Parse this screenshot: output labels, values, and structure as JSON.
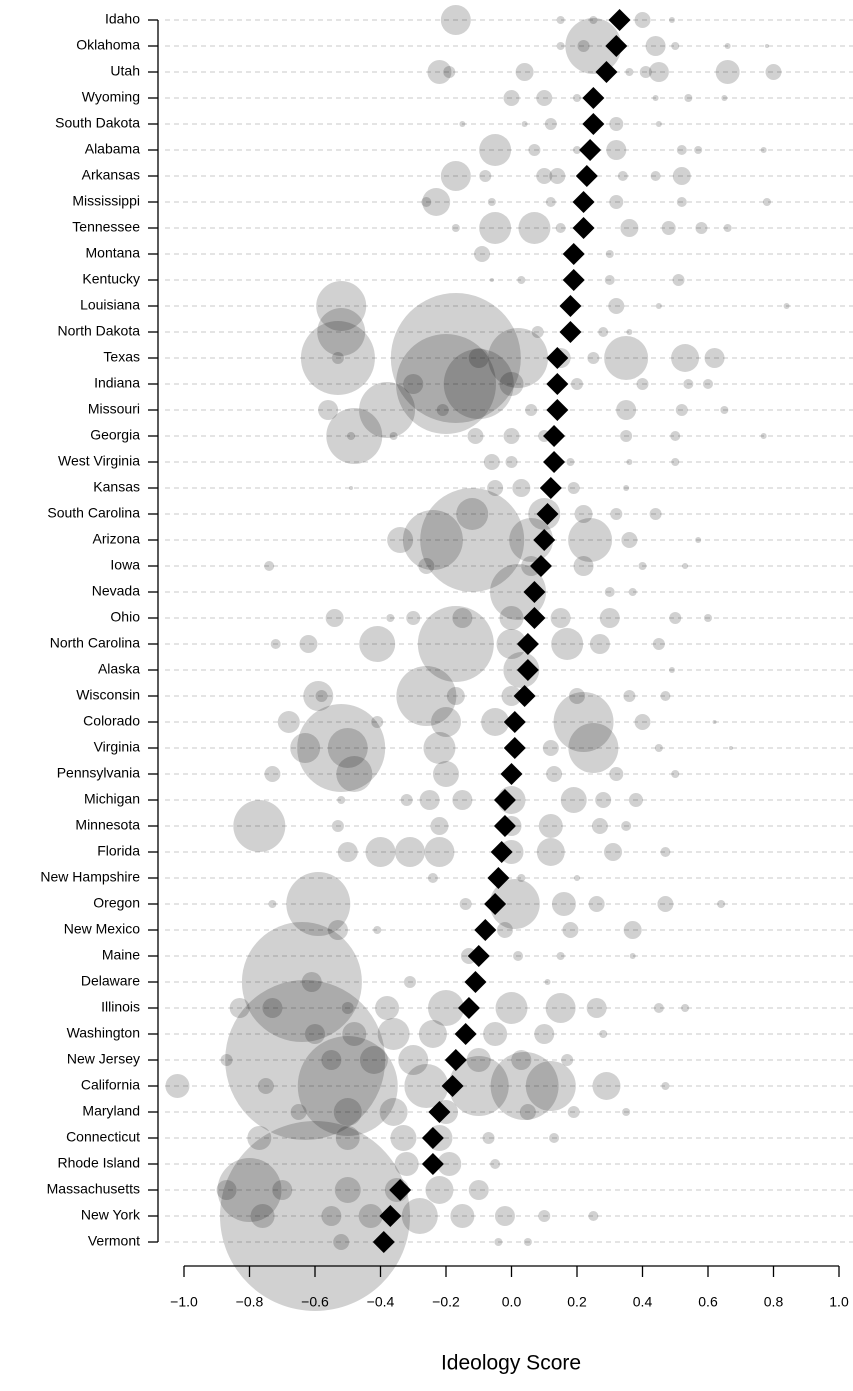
{
  "chart_data": {
    "type": "dotplot",
    "xlabel": "Ideology Score",
    "xlim": [
      -1.0,
      1.0
    ],
    "xticks": [
      {
        "value": -1.0,
        "label": "−1.0"
      },
      {
        "value": -0.8,
        "label": "−0.8"
      },
      {
        "value": -0.6,
        "label": "−0.6"
      },
      {
        "value": -0.4,
        "label": "−0.4"
      },
      {
        "value": -0.2,
        "label": "−0.2"
      },
      {
        "value": 0,
        "label": "0.0"
      },
      0.2,
      0.4,
      0.6,
      0.8,
      {
        "value": 1.0,
        "label": "1.0"
      }
    ],
    "grid": true,
    "mean_color": "#000000",
    "point_color": "#000000",
    "categories": [
      "Idaho",
      "Oklahoma",
      "Utah",
      "Wyoming",
      "South Dakota",
      "Alabama",
      "Arkansas",
      "Mississippi",
      "Tennessee",
      "Montana",
      "Kentucky",
      "Louisiana",
      "North Dakota",
      "Texas",
      "Indiana",
      "Missouri",
      "Georgia",
      "West Virginia",
      "Kansas",
      "South Carolina",
      "Arizona",
      "Iowa",
      "Nevada",
      "Ohio",
      "North Carolina",
      "Alaska",
      "Wisconsin",
      "Colorado",
      "Virginia",
      "Pennsylvania",
      "Michigan",
      "Minnesota",
      "Florida",
      "New Hampshire",
      "Oregon",
      "New Mexico",
      "Maine",
      "Delaware",
      "Illinois",
      "Washington",
      "New Jersey",
      "California",
      "Maryland",
      "Connecticut",
      "Rhode Island",
      "Massachusetts",
      "New York",
      "Vermont"
    ],
    "means": [
      0.33,
      0.32,
      0.29,
      0.25,
      0.25,
      0.24,
      0.23,
      0.22,
      0.22,
      0.19,
      0.19,
      0.18,
      0.18,
      0.14,
      0.14,
      0.14,
      0.13,
      0.13,
      0.12,
      0.11,
      0.1,
      0.09,
      0.07,
      0.07,
      0.05,
      0.05,
      0.04,
      0.01,
      0.01,
      0.0,
      -0.02,
      -0.02,
      -0.03,
      -0.04,
      -0.05,
      -0.08,
      -0.1,
      -0.11,
      -0.13,
      -0.14,
      -0.17,
      -0.18,
      -0.22,
      -0.24,
      -0.24,
      -0.34,
      -0.37,
      -0.39
    ],
    "points": [
      [
        [
          -0.17,
          15
        ],
        [
          0.15,
          4
        ],
        [
          0.25,
          4
        ],
        [
          0.4,
          8
        ],
        [
          0.49,
          3
        ]
      ],
      [
        [
          0.22,
          6
        ],
        [
          0.15,
          4
        ],
        [
          0.25,
          28
        ],
        [
          0.44,
          10
        ],
        [
          0.5,
          4
        ],
        [
          0.66,
          3
        ],
        [
          0.78,
          2
        ]
      ],
      [
        [
          -0.22,
          12
        ],
        [
          -0.19,
          6
        ],
        [
          0.04,
          9
        ],
        [
          0.41,
          6
        ],
        [
          0.45,
          10
        ],
        [
          0.66,
          12
        ],
        [
          0.8,
          8
        ],
        [
          0.36,
          4
        ]
      ],
      [
        [
          0,
          8
        ],
        [
          0.1,
          8
        ],
        [
          0.2,
          4
        ],
        [
          0.44,
          3
        ],
        [
          0.54,
          4
        ],
        [
          0.65,
          3
        ]
      ],
      [
        [
          -0.15,
          3
        ],
        [
          0.12,
          6
        ],
        [
          0.32,
          7
        ],
        [
          0.45,
          3
        ],
        [
          0.04,
          3
        ]
      ],
      [
        [
          -0.05,
          16
        ],
        [
          0.07,
          6
        ],
        [
          0.2,
          4
        ],
        [
          0.32,
          10
        ],
        [
          0.52,
          5
        ],
        [
          0.57,
          4
        ],
        [
          0.77,
          3
        ]
      ],
      [
        [
          -0.17,
          15
        ],
        [
          -0.08,
          6
        ],
        [
          0.1,
          8
        ],
        [
          0.14,
          8
        ],
        [
          0.34,
          5
        ],
        [
          0.44,
          5
        ],
        [
          0.52,
          9
        ]
      ],
      [
        [
          -0.23,
          14
        ],
        [
          -0.26,
          5
        ],
        [
          -0.06,
          4
        ],
        [
          0.12,
          5
        ],
        [
          0.32,
          7
        ],
        [
          0.52,
          5
        ],
        [
          0.78,
          4
        ]
      ],
      [
        [
          -0.17,
          4
        ],
        [
          -0.05,
          16
        ],
        [
          0.07,
          16
        ],
        [
          0.15,
          5
        ],
        [
          0.36,
          9
        ],
        [
          0.48,
          7
        ],
        [
          0.58,
          6
        ],
        [
          0.66,
          4
        ]
      ],
      [
        [
          -0.09,
          8
        ],
        [
          0.3,
          4
        ]
      ],
      [
        [
          -0.06,
          2
        ],
        [
          0.03,
          4
        ],
        [
          0.2,
          5
        ],
        [
          0.3,
          5
        ],
        [
          0.51,
          6
        ]
      ],
      [
        [
          -0.52,
          25
        ],
        [
          0.32,
          8
        ],
        [
          0.45,
          3
        ],
        [
          0.84,
          3
        ]
      ],
      [
        [
          -0.52,
          24
        ],
        [
          0.08,
          6
        ],
        [
          0.28,
          5
        ],
        [
          0.36,
          3
        ]
      ],
      [
        [
          -0.53,
          37
        ],
        [
          -0.53,
          6
        ],
        [
          -0.17,
          65
        ],
        [
          0.02,
          30
        ],
        [
          -0.1,
          10
        ],
        [
          0.15,
          10
        ],
        [
          0.35,
          22
        ],
        [
          0.53,
          14
        ],
        [
          0.62,
          10
        ],
        [
          0.25,
          6
        ]
      ],
      [
        [
          -0.3,
          10
        ],
        [
          -0.2,
          50
        ],
        [
          -0.1,
          35
        ],
        [
          0,
          12
        ],
        [
          0.2,
          6
        ],
        [
          0.4,
          6
        ],
        [
          0.54,
          5
        ],
        [
          0.6,
          5
        ]
      ],
      [
        [
          -0.38,
          28
        ],
        [
          -0.56,
          10
        ],
        [
          -0.21,
          6
        ],
        [
          0.06,
          6
        ],
        [
          0.35,
          10
        ],
        [
          0.52,
          6
        ],
        [
          0.65,
          4
        ]
      ],
      [
        [
          -0.48,
          28
        ],
        [
          -0.49,
          4
        ],
        [
          -0.36,
          4
        ],
        [
          -0.11,
          8
        ],
        [
          0.0,
          8
        ],
        [
          0.1,
          6
        ],
        [
          0.35,
          6
        ],
        [
          0.5,
          5
        ],
        [
          0.77,
          3
        ]
      ],
      [
        [
          -0.06,
          8
        ],
        [
          0,
          6
        ],
        [
          0.18,
          4
        ],
        [
          0.36,
          3
        ],
        [
          0.5,
          4
        ]
      ],
      [
        [
          -0.05,
          8
        ],
        [
          0.03,
          9
        ],
        [
          0.19,
          6
        ],
        [
          0.35,
          3
        ],
        [
          -0.49,
          2
        ]
      ],
      [
        [
          -0.12,
          16
        ],
        [
          0.1,
          16
        ],
        [
          0.22,
          9
        ],
        [
          0.32,
          6
        ],
        [
          0.44,
          6
        ]
      ],
      [
        [
          -0.34,
          13
        ],
        [
          -0.24,
          30
        ],
        [
          -0.12,
          52
        ],
        [
          0.06,
          22
        ],
        [
          0.24,
          22
        ],
        [
          0.36,
          8
        ],
        [
          0.57,
          3
        ]
      ],
      [
        [
          -0.74,
          5
        ],
        [
          -0.26,
          8
        ],
        [
          0.06,
          10
        ],
        [
          0.22,
          10
        ],
        [
          0.4,
          4
        ],
        [
          0.53,
          3
        ]
      ],
      [
        [
          0.02,
          28
        ],
        [
          0.3,
          5
        ],
        [
          0.37,
          4
        ]
      ],
      [
        [
          -0.54,
          9
        ],
        [
          -0.37,
          4
        ],
        [
          -0.3,
          7
        ],
        [
          -0.15,
          10
        ],
        [
          0,
          12
        ],
        [
          0.15,
          10
        ],
        [
          0.3,
          10
        ],
        [
          0.5,
          6
        ],
        [
          0.6,
          4
        ]
      ],
      [
        [
          -0.72,
          5
        ],
        [
          -0.62,
          9
        ],
        [
          -0.41,
          18
        ],
        [
          -0.17,
          38
        ],
        [
          0,
          15
        ],
        [
          0.17,
          16
        ],
        [
          0.27,
          10
        ],
        [
          0.45,
          6
        ]
      ],
      [
        [
          0.03,
          18
        ],
        [
          0.49,
          3
        ]
      ],
      [
        [
          -0.59,
          15
        ],
        [
          -0.58,
          6
        ],
        [
          -0.26,
          30
        ],
        [
          -0.17,
          9
        ],
        [
          0,
          10
        ],
        [
          0.2,
          8
        ],
        [
          0.36,
          6
        ],
        [
          0.47,
          5
        ]
      ],
      [
        [
          -0.68,
          11
        ],
        [
          -0.41,
          6
        ],
        [
          -0.2,
          15
        ],
        [
          -0.05,
          14
        ],
        [
          0.22,
          30
        ],
        [
          0.4,
          8
        ],
        [
          0.62,
          2
        ]
      ],
      [
        [
          -0.52,
          44
        ],
        [
          -0.63,
          15
        ],
        [
          -0.5,
          20
        ],
        [
          -0.22,
          16
        ],
        [
          0.12,
          8
        ],
        [
          0.25,
          25
        ],
        [
          0.45,
          4
        ],
        [
          0.67,
          2
        ]
      ],
      [
        [
          -0.73,
          8
        ],
        [
          -0.48,
          18
        ],
        [
          -0.2,
          13
        ],
        [
          0.13,
          8
        ],
        [
          0.32,
          7
        ],
        [
          0.5,
          4
        ]
      ],
      [
        [
          -0.32,
          6
        ],
        [
          -0.25,
          10
        ],
        [
          -0.15,
          10
        ],
        [
          0,
          14
        ],
        [
          0.19,
          13
        ],
        [
          0.28,
          8
        ],
        [
          0.38,
          7
        ],
        [
          -0.52,
          4
        ]
      ],
      [
        [
          -0.77,
          26
        ],
        [
          -0.53,
          6
        ],
        [
          -0.22,
          9
        ],
        [
          0,
          10
        ],
        [
          0.12,
          12
        ],
        [
          0.27,
          8
        ],
        [
          0.35,
          5
        ]
      ],
      [
        [
          -0.5,
          10
        ],
        [
          -0.4,
          15
        ],
        [
          -0.31,
          15
        ],
        [
          -0.22,
          15
        ],
        [
          0,
          12
        ],
        [
          0.12,
          14
        ],
        [
          0.31,
          9
        ],
        [
          0.47,
          5
        ]
      ],
      [
        [
          -0.24,
          5
        ],
        [
          0.03,
          4
        ],
        [
          0.2,
          3
        ]
      ],
      [
        [
          -0.59,
          32
        ],
        [
          -0.73,
          4
        ],
        [
          -0.14,
          6
        ],
        [
          0.01,
          25
        ],
        [
          0.16,
          12
        ],
        [
          0.26,
          8
        ],
        [
          0.47,
          8
        ],
        [
          0.64,
          4
        ]
      ],
      [
        [
          -0.53,
          10
        ],
        [
          -0.41,
          4
        ],
        [
          -0.02,
          8
        ],
        [
          0.18,
          8
        ],
        [
          0.37,
          9
        ]
      ],
      [
        [
          -0.13,
          8
        ],
        [
          0.02,
          5
        ],
        [
          0.15,
          4
        ],
        [
          0.37,
          3
        ]
      ],
      [
        [
          -0.64,
          60
        ],
        [
          -0.61,
          10
        ],
        [
          -0.31,
          6
        ],
        [
          0.11,
          3
        ]
      ],
      [
        [
          -0.83,
          10
        ],
        [
          -0.73,
          10
        ],
        [
          -0.5,
          6
        ],
        [
          -0.38,
          12
        ],
        [
          -0.2,
          18
        ],
        [
          0,
          16
        ],
        [
          0.15,
          15
        ],
        [
          0.26,
          10
        ],
        [
          0.45,
          5
        ],
        [
          0.53,
          4
        ]
      ],
      [
        [
          -0.6,
          10
        ],
        [
          -0.48,
          12
        ],
        [
          -0.36,
          16
        ],
        [
          -0.24,
          14
        ],
        [
          -0.05,
          12
        ],
        [
          0.1,
          10
        ],
        [
          0.28,
          4
        ]
      ],
      [
        [
          -0.87,
          6
        ],
        [
          -0.63,
          80
        ],
        [
          -0.55,
          10
        ],
        [
          -0.42,
          14
        ],
        [
          -0.3,
          15
        ],
        [
          -0.1,
          12
        ],
        [
          0.03,
          10
        ],
        [
          0.17,
          6
        ]
      ],
      [
        [
          -1.02,
          12
        ],
        [
          -0.75,
          8
        ],
        [
          -0.5,
          50
        ],
        [
          -0.26,
          22
        ],
        [
          -0.1,
          30
        ],
        [
          0.04,
          34
        ],
        [
          0.12,
          25
        ],
        [
          0.29,
          14
        ],
        [
          0.47,
          4
        ]
      ],
      [
        [
          -0.65,
          8
        ],
        [
          -0.5,
          14
        ],
        [
          -0.36,
          14
        ],
        [
          -0.2,
          12
        ],
        [
          0.05,
          8
        ],
        [
          0.19,
          6
        ],
        [
          0.35,
          4
        ]
      ],
      [
        [
          -0.77,
          12
        ],
        [
          -0.5,
          12
        ],
        [
          -0.33,
          13
        ],
        [
          -0.22,
          13
        ],
        [
          -0.07,
          6
        ],
        [
          0.13,
          5
        ]
      ],
      [
        [
          -0.32,
          12
        ],
        [
          -0.19,
          12
        ],
        [
          -0.05,
          5
        ]
      ],
      [
        [
          -0.8,
          32
        ],
        [
          -0.87,
          10
        ],
        [
          -0.7,
          10
        ],
        [
          -0.5,
          13
        ],
        [
          -0.35,
          12
        ],
        [
          -0.22,
          14
        ],
        [
          -0.1,
          10
        ]
      ],
      [
        [
          -0.6,
          95
        ],
        [
          -0.76,
          12
        ],
        [
          -0.55,
          10
        ],
        [
          -0.43,
          12
        ],
        [
          -0.28,
          18
        ],
        [
          -0.15,
          12
        ],
        [
          -0.02,
          10
        ],
        [
          0.1,
          6
        ],
        [
          0.25,
          5
        ]
      ],
      [
        [
          -0.52,
          8
        ],
        [
          -0.38,
          5
        ],
        [
          -0.04,
          4
        ],
        [
          0.05,
          4
        ]
      ]
    ]
  }
}
